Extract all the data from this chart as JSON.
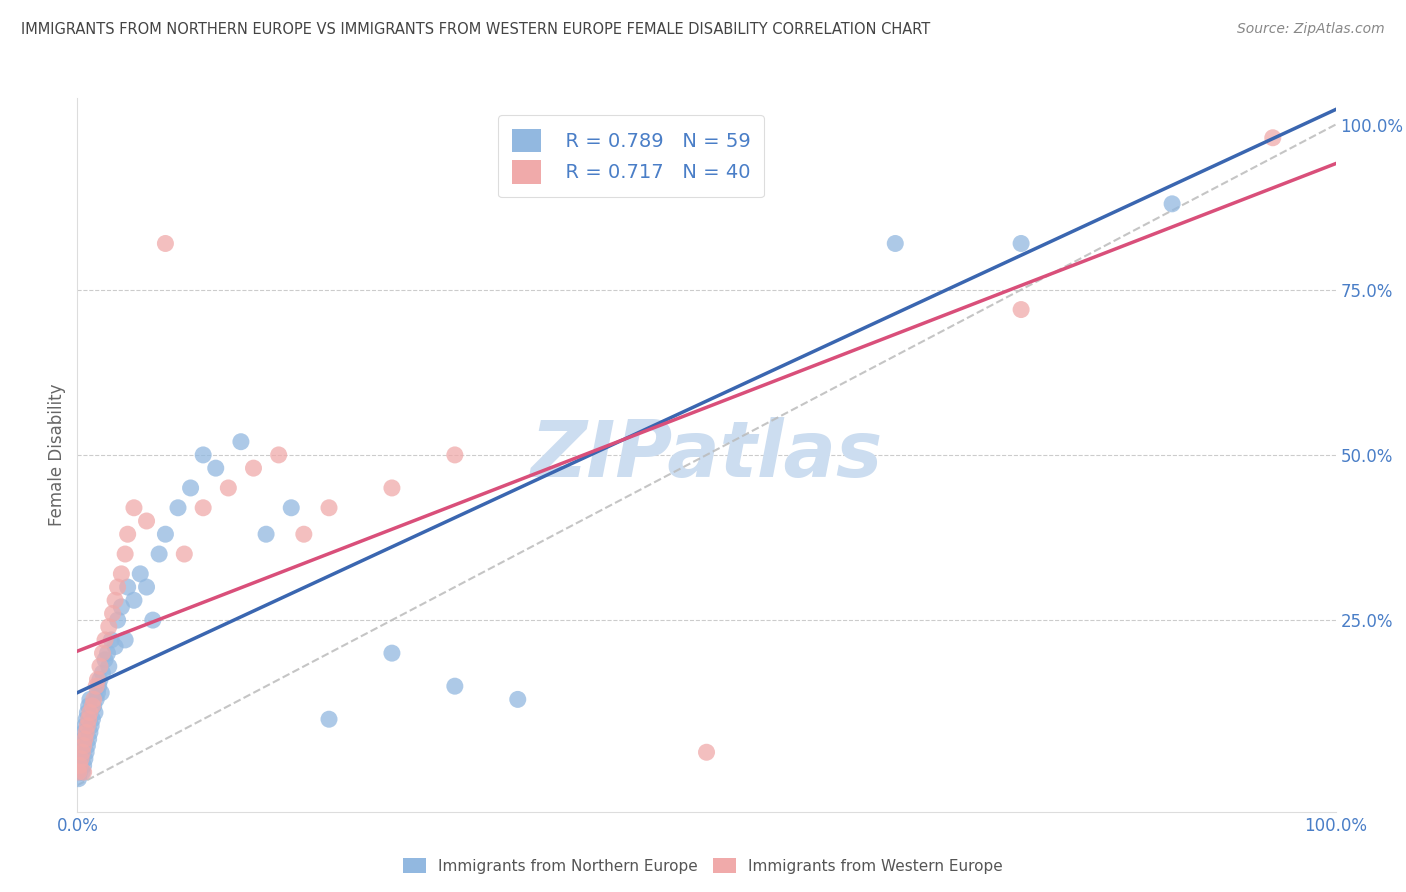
{
  "title": "IMMIGRANTS FROM NORTHERN EUROPE VS IMMIGRANTS FROM WESTERN EUROPE FEMALE DISABILITY CORRELATION CHART",
  "source": "Source: ZipAtlas.com",
  "ylabel": "Female Disability",
  "legend_label_blue": "Immigrants from Northern Europe",
  "legend_label_pink": "Immigrants from Western Europe",
  "R_blue": 0.789,
  "N_blue": 59,
  "R_pink": 0.717,
  "N_pink": 40,
  "blue_color": "#92b8e0",
  "pink_color": "#f0aaaa",
  "blue_line_color": "#3a66b0",
  "pink_line_color": "#d94f7a",
  "text_color": "#4a7ec7",
  "watermark_color": "#ccddf0",
  "title_color": "#444444",
  "source_color": "#888888",
  "blue_scatter_x": [
    0.001,
    0.002,
    0.002,
    0.003,
    0.003,
    0.004,
    0.004,
    0.005,
    0.005,
    0.005,
    0.006,
    0.006,
    0.007,
    0.007,
    0.008,
    0.008,
    0.009,
    0.009,
    0.01,
    0.01,
    0.011,
    0.012,
    0.013,
    0.014,
    0.015,
    0.016,
    0.017,
    0.018,
    0.019,
    0.02,
    0.022,
    0.024,
    0.025,
    0.027,
    0.03,
    0.032,
    0.035,
    0.038,
    0.04,
    0.045,
    0.05,
    0.055,
    0.06,
    0.065,
    0.07,
    0.08,
    0.09,
    0.1,
    0.11,
    0.13,
    0.15,
    0.17,
    0.2,
    0.25,
    0.3,
    0.35,
    0.65,
    0.75,
    0.87
  ],
  "blue_scatter_y": [
    0.01,
    0.02,
    0.03,
    0.04,
    0.05,
    0.06,
    0.02,
    0.07,
    0.08,
    0.03,
    0.09,
    0.04,
    0.05,
    0.1,
    0.06,
    0.11,
    0.07,
    0.12,
    0.08,
    0.13,
    0.09,
    0.1,
    0.12,
    0.11,
    0.13,
    0.14,
    0.15,
    0.16,
    0.14,
    0.17,
    0.19,
    0.2,
    0.18,
    0.22,
    0.21,
    0.25,
    0.27,
    0.22,
    0.3,
    0.28,
    0.32,
    0.3,
    0.25,
    0.35,
    0.38,
    0.42,
    0.45,
    0.5,
    0.48,
    0.52,
    0.38,
    0.42,
    0.1,
    0.2,
    0.15,
    0.13,
    0.82,
    0.82,
    0.88
  ],
  "pink_scatter_x": [
    0.001,
    0.002,
    0.003,
    0.004,
    0.005,
    0.005,
    0.006,
    0.007,
    0.008,
    0.009,
    0.01,
    0.012,
    0.013,
    0.015,
    0.016,
    0.018,
    0.02,
    0.022,
    0.025,
    0.028,
    0.03,
    0.032,
    0.035,
    0.038,
    0.04,
    0.045,
    0.055,
    0.07,
    0.085,
    0.1,
    0.12,
    0.14,
    0.16,
    0.18,
    0.2,
    0.25,
    0.3,
    0.5,
    0.75,
    0.95
  ],
  "pink_scatter_y": [
    0.02,
    0.03,
    0.04,
    0.05,
    0.06,
    0.02,
    0.07,
    0.08,
    0.09,
    0.1,
    0.11,
    0.12,
    0.13,
    0.15,
    0.16,
    0.18,
    0.2,
    0.22,
    0.24,
    0.26,
    0.28,
    0.3,
    0.32,
    0.35,
    0.38,
    0.42,
    0.4,
    0.82,
    0.35,
    0.42,
    0.45,
    0.48,
    0.5,
    0.38,
    0.42,
    0.45,
    0.5,
    0.05,
    0.72,
    0.98
  ],
  "xlim": [
    0.0,
    1.0
  ],
  "ylim": [
    -0.04,
    1.04
  ],
  "grid_lines": [
    0.25,
    0.5,
    0.75
  ],
  "right_ytick_vals": [
    0.25,
    0.5,
    0.75,
    1.0
  ],
  "right_ytick_labels": [
    "25.0%",
    "50.0%",
    "75.0%",
    "100.0%"
  ],
  "xtick_vals": [
    0.0,
    1.0
  ],
  "xtick_labels": [
    "0.0%",
    "100.0%"
  ]
}
